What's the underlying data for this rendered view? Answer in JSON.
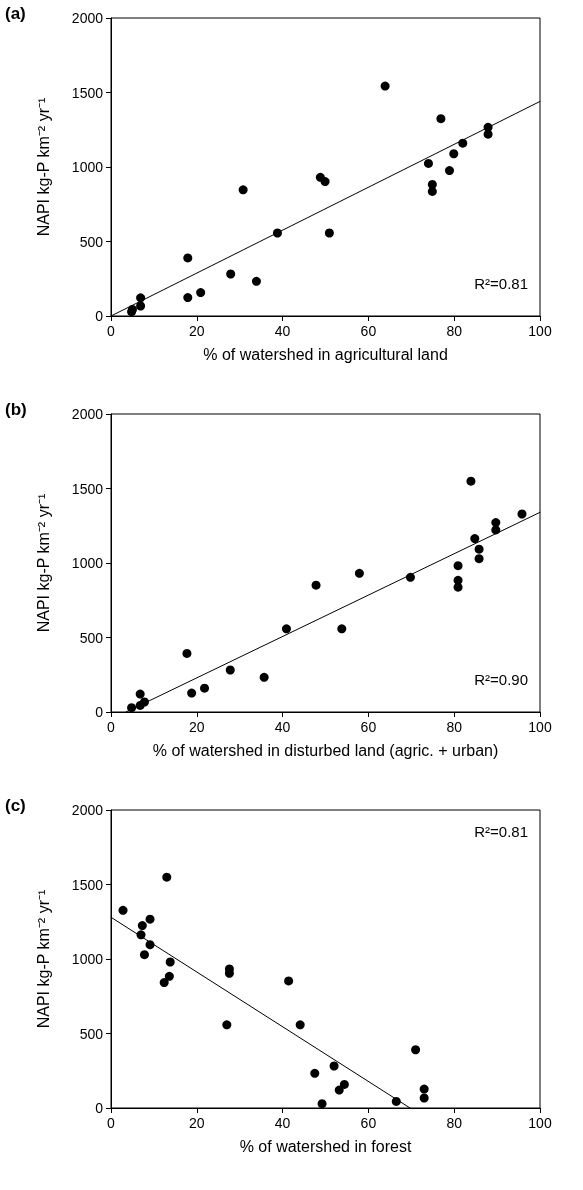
{
  "chart_data": [
    {
      "type": "scatter",
      "title": "(a)",
      "xlabel": "% of watershed in agricultural land",
      "ylabel": "NAPI kg-P km⁻² yr⁻¹",
      "annotations": [
        "R²=0.81"
      ],
      "xlim": [
        0,
        100
      ],
      "xticks": [
        0,
        20,
        40,
        60,
        80,
        100
      ],
      "ylim": [
        0,
        2000
      ],
      "yticks": [
        0,
        500,
        1000,
        1500,
        2000
      ],
      "grid": false,
      "marker": "circle",
      "series": [
        {
          "color": "#000000",
          "x": [
            4.8,
            5,
            6.9,
            6.9,
            17.9,
            17.9,
            20.9,
            27.9,
            30.8,
            33.9,
            38.8,
            48.8,
            49.9,
            50.9,
            63.9,
            74,
            74.9,
            74.9,
            76.9,
            78.9,
            79.9,
            82,
            87.9,
            87.9
          ],
          "values": [
            29,
            44,
            122,
            67,
            390,
            124,
            157,
            282,
            847,
            233,
            557,
            931,
            902,
            557,
            1543,
            1024,
            883,
            836,
            1324,
            976,
            1089,
            1160,
            1266,
            1220
          ]
        },
        {
          "type": "line",
          "color": "#000000",
          "marker": "none",
          "line_style": "solid",
          "x": [
            0,
            100
          ],
          "values": [
            0,
            1440
          ]
        }
      ]
    },
    {
      "type": "scatter",
      "title": "(b)",
      "xlabel": "% of watershed in disturbed land (agric. + urban)",
      "ylabel": "NAPI kg-P km⁻² yr⁻¹",
      "annotations": [
        "R²=0.90"
      ],
      "xlim": [
        0,
        100
      ],
      "xticks": [
        0,
        20,
        40,
        60,
        80,
        100
      ],
      "ylim": [
        0,
        2000
      ],
      "yticks": [
        0,
        500,
        1000,
        1500,
        2000
      ],
      "grid": false,
      "marker": "circle",
      "series": [
        {
          "color": "#000000",
          "x": [
            4.8,
            6.8,
            6.8,
            7.8,
            17.7,
            18.8,
            21.8,
            27.8,
            35.7,
            40.9,
            47.8,
            53.8,
            57.9,
            69.8,
            80.9,
            80.9,
            80.9,
            83.9,
            84.8,
            85.8,
            85.8,
            89.7,
            89.7,
            95.8
          ],
          "values": [
            29,
            120,
            44,
            67,
            393,
            127,
            160,
            282,
            233,
            558,
            851,
            558,
            931,
            904,
            982,
            884,
            838,
            1549,
            1164,
            1093,
            1029,
            1271,
            1222,
            1329
          ]
        },
        {
          "type": "line",
          "color": "#000000",
          "marker": "none",
          "line_style": "solid",
          "x": [
            3.5,
            100
          ],
          "values": [
            0,
            1340
          ]
        }
      ]
    },
    {
      "type": "scatter",
      "title": "(c)",
      "xlabel": "% of watershed in forest",
      "ylabel": "NAPI kg-P km⁻² yr⁻¹",
      "annotations": [
        "R²=0.81"
      ],
      "xlim": [
        0,
        100
      ],
      "xticks": [
        0,
        20,
        40,
        60,
        80,
        100
      ],
      "ylim": [
        0,
        2000
      ],
      "yticks": [
        0,
        500,
        1000,
        1500,
        2000
      ],
      "grid": false,
      "marker": "circle",
      "series": [
        {
          "color": "#000000",
          "x": [
            2.8,
            13,
            9.1,
            7.3,
            7,
            9.1,
            7.8,
            13.8,
            13.6,
            12.4,
            27.6,
            27.6,
            27,
            41.4,
            44.1,
            71,
            52,
            47.5,
            54.4,
            53.2,
            73,
            73,
            49.2,
            66.5
          ],
          "values": [
            1327,
            1549,
            1267,
            1224,
            1162,
            1096,
            1029,
            980,
            884,
            842,
            933,
            904,
            558,
            853,
            558,
            391,
            282,
            233,
            158,
            120,
            127,
            67,
            29,
            44
          ]
        },
        {
          "type": "line",
          "color": "#000000",
          "marker": "none",
          "line_style": "solid",
          "x": [
            0,
            69.7
          ],
          "values": [
            1280,
            0
          ]
        }
      ]
    }
  ]
}
